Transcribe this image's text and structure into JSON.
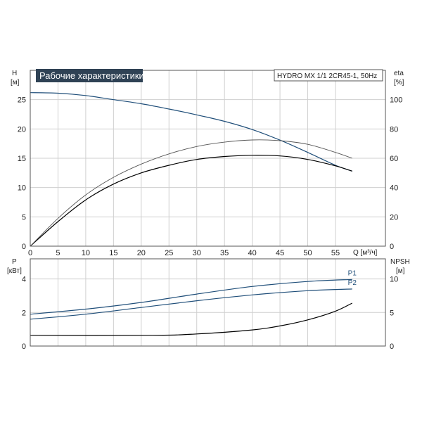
{
  "chart_data": [
    {
      "type": "line",
      "title": "Рабочие характеристики",
      "model": "HYDRO MX 1/1 2CR45-1, 50Hz",
      "xlabel": "Q [м³/ч]",
      "ylabel_left": "H",
      "ylabel_left_unit": "[м]",
      "ylabel_right": "eta",
      "ylabel_right_unit": "[%]",
      "x_ticks": [
        0,
        5,
        10,
        15,
        20,
        25,
        30,
        35,
        40,
        45,
        50,
        55
      ],
      "xlim": [
        0,
        64
      ],
      "y_left_ticks": [
        0,
        5,
        10,
        15,
        20,
        25
      ],
      "ylim_left": [
        0,
        30
      ],
      "y_right_ticks": [
        0,
        20,
        40,
        60,
        80,
        100
      ],
      "ylim_right": [
        0,
        120
      ],
      "grid": true,
      "series": [
        {
          "axis": "left",
          "color": "#1f4e79",
          "x": [
            0,
            5,
            10,
            15,
            20,
            25,
            30,
            35,
            40,
            45,
            50,
            55,
            58
          ],
          "y": [
            26.2,
            26.1,
            25.7,
            25.0,
            24.3,
            23.4,
            22.4,
            21.3,
            19.9,
            18.1,
            16.0,
            13.8,
            12.8
          ]
        },
        {
          "axis": "left",
          "color": "#000000",
          "x": [
            0,
            5,
            10,
            15,
            20,
            25,
            30,
            35,
            40,
            45,
            50,
            55,
            58
          ],
          "y": [
            0,
            4.2,
            7.9,
            10.6,
            12.5,
            13.8,
            14.8,
            15.3,
            15.5,
            15.4,
            14.8,
            13.7,
            12.8
          ]
        },
        {
          "axis": "right",
          "color": "#555555",
          "x": [
            0,
            5,
            10,
            15,
            20,
            25,
            30,
            35,
            40,
            45,
            50,
            55,
            58
          ],
          "y": [
            0,
            19,
            35,
            47,
            56,
            63,
            68,
            71,
            72.5,
            72,
            69.5,
            64,
            60
          ]
        }
      ]
    },
    {
      "type": "line",
      "ylabel_left": "P",
      "ylabel_left_unit": "[кВт]",
      "ylabel_right": "NPSH",
      "ylabel_right_unit": "[м]",
      "x_ticks": [
        0,
        5,
        10,
        15,
        20,
        25,
        30,
        35,
        40,
        45,
        50,
        55
      ],
      "xlim": [
        0,
        64
      ],
      "y_left_ticks": [
        0,
        2,
        4
      ],
      "ylim_left": [
        0,
        5.2
      ],
      "y_right_ticks": [
        0,
        5,
        10
      ],
      "ylim_right": [
        0,
        13
      ],
      "grid": true,
      "series": [
        {
          "name": "P1",
          "axis": "left",
          "color": "#1f4e79",
          "x": [
            0,
            10,
            20,
            30,
            40,
            50,
            58
          ],
          "y": [
            1.9,
            2.2,
            2.6,
            3.1,
            3.55,
            3.85,
            3.97
          ]
        },
        {
          "name": "P2",
          "axis": "left",
          "color": "#1f4e79",
          "x": [
            0,
            10,
            20,
            30,
            40,
            50,
            58
          ],
          "y": [
            1.6,
            1.9,
            2.3,
            2.7,
            3.05,
            3.3,
            3.4
          ]
        },
        {
          "axis": "right",
          "color": "#000000",
          "x": [
            0,
            22,
            30,
            40,
            45,
            50,
            55,
            58
          ],
          "y": [
            1.6,
            1.6,
            1.8,
            2.4,
            3.0,
            3.9,
            5.2,
            6.4
          ]
        }
      ]
    }
  ]
}
